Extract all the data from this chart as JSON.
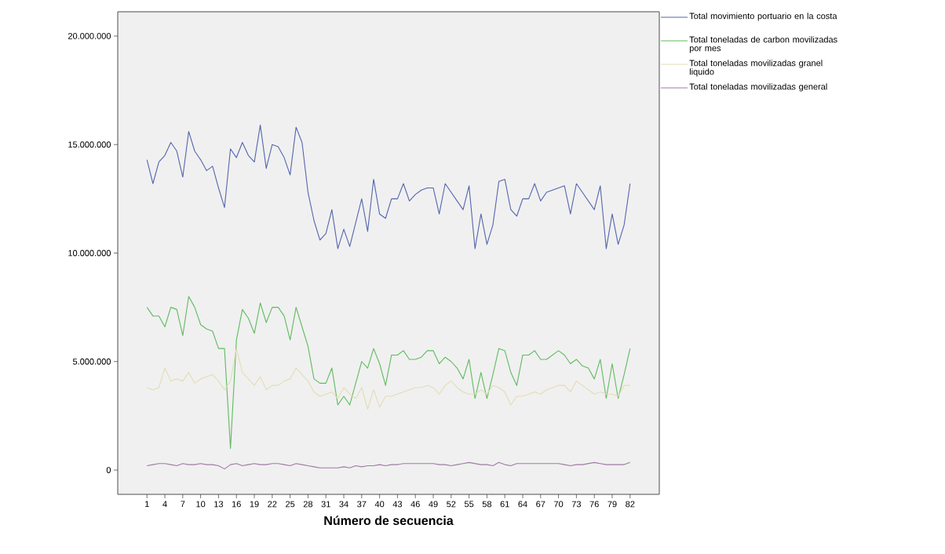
{
  "chart_data": {
    "type": "line",
    "xlabel": "Número de secuencia",
    "x": [
      1,
      2,
      3,
      4,
      5,
      6,
      7,
      8,
      9,
      10,
      11,
      12,
      13,
      14,
      15,
      16,
      17,
      18,
      19,
      20,
      21,
      22,
      23,
      24,
      25,
      26,
      27,
      28,
      29,
      30,
      31,
      32,
      33,
      34,
      35,
      36,
      37,
      38,
      39,
      40,
      41,
      42,
      43,
      44,
      45,
      46,
      47,
      48,
      49,
      50,
      51,
      52,
      53,
      54,
      55,
      56,
      57,
      58,
      59,
      60,
      61,
      62,
      63,
      64,
      65,
      66,
      67,
      68,
      69,
      70,
      71,
      72,
      73,
      74,
      75,
      76,
      77,
      78,
      79,
      80,
      81,
      82
    ],
    "xlim": [
      -3.9,
      86.9
    ],
    "xticks": [
      1,
      4,
      7,
      10,
      13,
      16,
      19,
      22,
      25,
      28,
      31,
      34,
      37,
      40,
      43,
      46,
      49,
      52,
      55,
      58,
      61,
      64,
      67,
      70,
      73,
      76,
      79,
      82
    ],
    "ylim": [
      -1120000,
      21120000
    ],
    "yticks": [
      {
        "value": 0,
        "label": "0"
      },
      {
        "value": 5000000,
        "label": "5.000.000"
      },
      {
        "value": 10000000,
        "label": "10.000.000"
      },
      {
        "value": 15000000,
        "label": "15.000.000"
      },
      {
        "value": 20000000,
        "label": "20.000.000"
      }
    ],
    "legend": "right",
    "marker": "none",
    "line_style": "solid",
    "grid": false,
    "series": [
      {
        "name": "Total movimiento portuario en la costa",
        "color": "#5465ae",
        "values": [
          14300000,
          13200000,
          14200000,
          14500000,
          15100000,
          14700000,
          13500000,
          15600000,
          14700000,
          14300000,
          13800000,
          14000000,
          13000000,
          12100000,
          14800000,
          14400000,
          15100000,
          14500000,
          14200000,
          15900000,
          13900000,
          15000000,
          14900000,
          14400000,
          13600000,
          15800000,
          15100000,
          12800000,
          11500000,
          10600000,
          10900000,
          12000000,
          10200000,
          11100000,
          10300000,
          11400000,
          12500000,
          11000000,
          13400000,
          11800000,
          11600000,
          12500000,
          12500000,
          13200000,
          12400000,
          12700000,
          12900000,
          13000000,
          13000000,
          11800000,
          13200000,
          12800000,
          12400000,
          12000000,
          13100000,
          10200000,
          11800000,
          10400000,
          11300000,
          13300000,
          13400000,
          12000000,
          11700000,
          12500000,
          12500000,
          13200000,
          12400000,
          12800000,
          12900000,
          13000000,
          13100000,
          11800000,
          13200000,
          12800000,
          12400000,
          12000000,
          13100000,
          10200000,
          11800000,
          10400000,
          11300000,
          13200000
        ]
      },
      {
        "name": "Total toneladas de carbon movilizadas por mes",
        "color": "#5fbb5f",
        "values": [
          7500000,
          7100000,
          7100000,
          6600000,
          7500000,
          7400000,
          6200000,
          8000000,
          7500000,
          6700000,
          6500000,
          6400000,
          5600000,
          5600000,
          1000000,
          6000000,
          7400000,
          7000000,
          6300000,
          7700000,
          6800000,
          7500000,
          7500000,
          7100000,
          6000000,
          7500000,
          6600000,
          5700000,
          4200000,
          4000000,
          4000000,
          4700000,
          3000000,
          3400000,
          3000000,
          4000000,
          5000000,
          4700000,
          5600000,
          4900000,
          3900000,
          5300000,
          5300000,
          5500000,
          5100000,
          5100000,
          5200000,
          5500000,
          5500000,
          4900000,
          5200000,
          5000000,
          4700000,
          4200000,
          5100000,
          3300000,
          4500000,
          3300000,
          4400000,
          5600000,
          5500000,
          4500000,
          3900000,
          5300000,
          5300000,
          5500000,
          5100000,
          5100000,
          5300000,
          5500000,
          5300000,
          4900000,
          5100000,
          4800000,
          4700000,
          4200000,
          5100000,
          3300000,
          4900000,
          3300000,
          4400000,
          5600000
        ]
      },
      {
        "name": "Total toneladas movilizadas granel liquido",
        "color": "#e4dcb4",
        "values": [
          3800000,
          3700000,
          3800000,
          4700000,
          4100000,
          4200000,
          4100000,
          4500000,
          4000000,
          4200000,
          4300000,
          4400000,
          4100000,
          3700000,
          4100000,
          5600000,
          4500000,
          4200000,
          3900000,
          4300000,
          3700000,
          3900000,
          3900000,
          4100000,
          4200000,
          4700000,
          4400000,
          4100000,
          3600000,
          3400000,
          3500000,
          3600000,
          3300000,
          3800000,
          3500000,
          3300000,
          3800000,
          2800000,
          3700000,
          2900000,
          3400000,
          3400000,
          3500000,
          3600000,
          3700000,
          3800000,
          3800000,
          3900000,
          3800000,
          3500000,
          3900000,
          4100000,
          3800000,
          3600000,
          3500000,
          3500000,
          3700000,
          3500000,
          3900000,
          3800000,
          3600000,
          3000000,
          3400000,
          3400000,
          3500000,
          3600000,
          3500000,
          3700000,
          3800000,
          3900000,
          3900000,
          3600000,
          4100000,
          3900000,
          3700000,
          3500000,
          3600000,
          3500000,
          3500000,
          3400000,
          3900000,
          3900000
        ]
      },
      {
        "name": "Total toneladas movilizadas general",
        "color": "#a07aa4",
        "values": [
          200000,
          250000,
          300000,
          300000,
          250000,
          200000,
          300000,
          250000,
          250000,
          300000,
          250000,
          250000,
          200000,
          50000,
          250000,
          300000,
          200000,
          250000,
          300000,
          250000,
          250000,
          300000,
          300000,
          250000,
          200000,
          300000,
          250000,
          200000,
          150000,
          100000,
          100000,
          100000,
          100000,
          150000,
          100000,
          200000,
          150000,
          200000,
          200000,
          250000,
          200000,
          250000,
          250000,
          300000,
          300000,
          300000,
          300000,
          300000,
          300000,
          250000,
          250000,
          200000,
          250000,
          300000,
          350000,
          300000,
          250000,
          250000,
          200000,
          350000,
          250000,
          200000,
          300000,
          300000,
          300000,
          300000,
          300000,
          300000,
          300000,
          300000,
          250000,
          200000,
          250000,
          250000,
          300000,
          350000,
          300000,
          250000,
          250000,
          250000,
          250000,
          350000
        ]
      }
    ]
  }
}
